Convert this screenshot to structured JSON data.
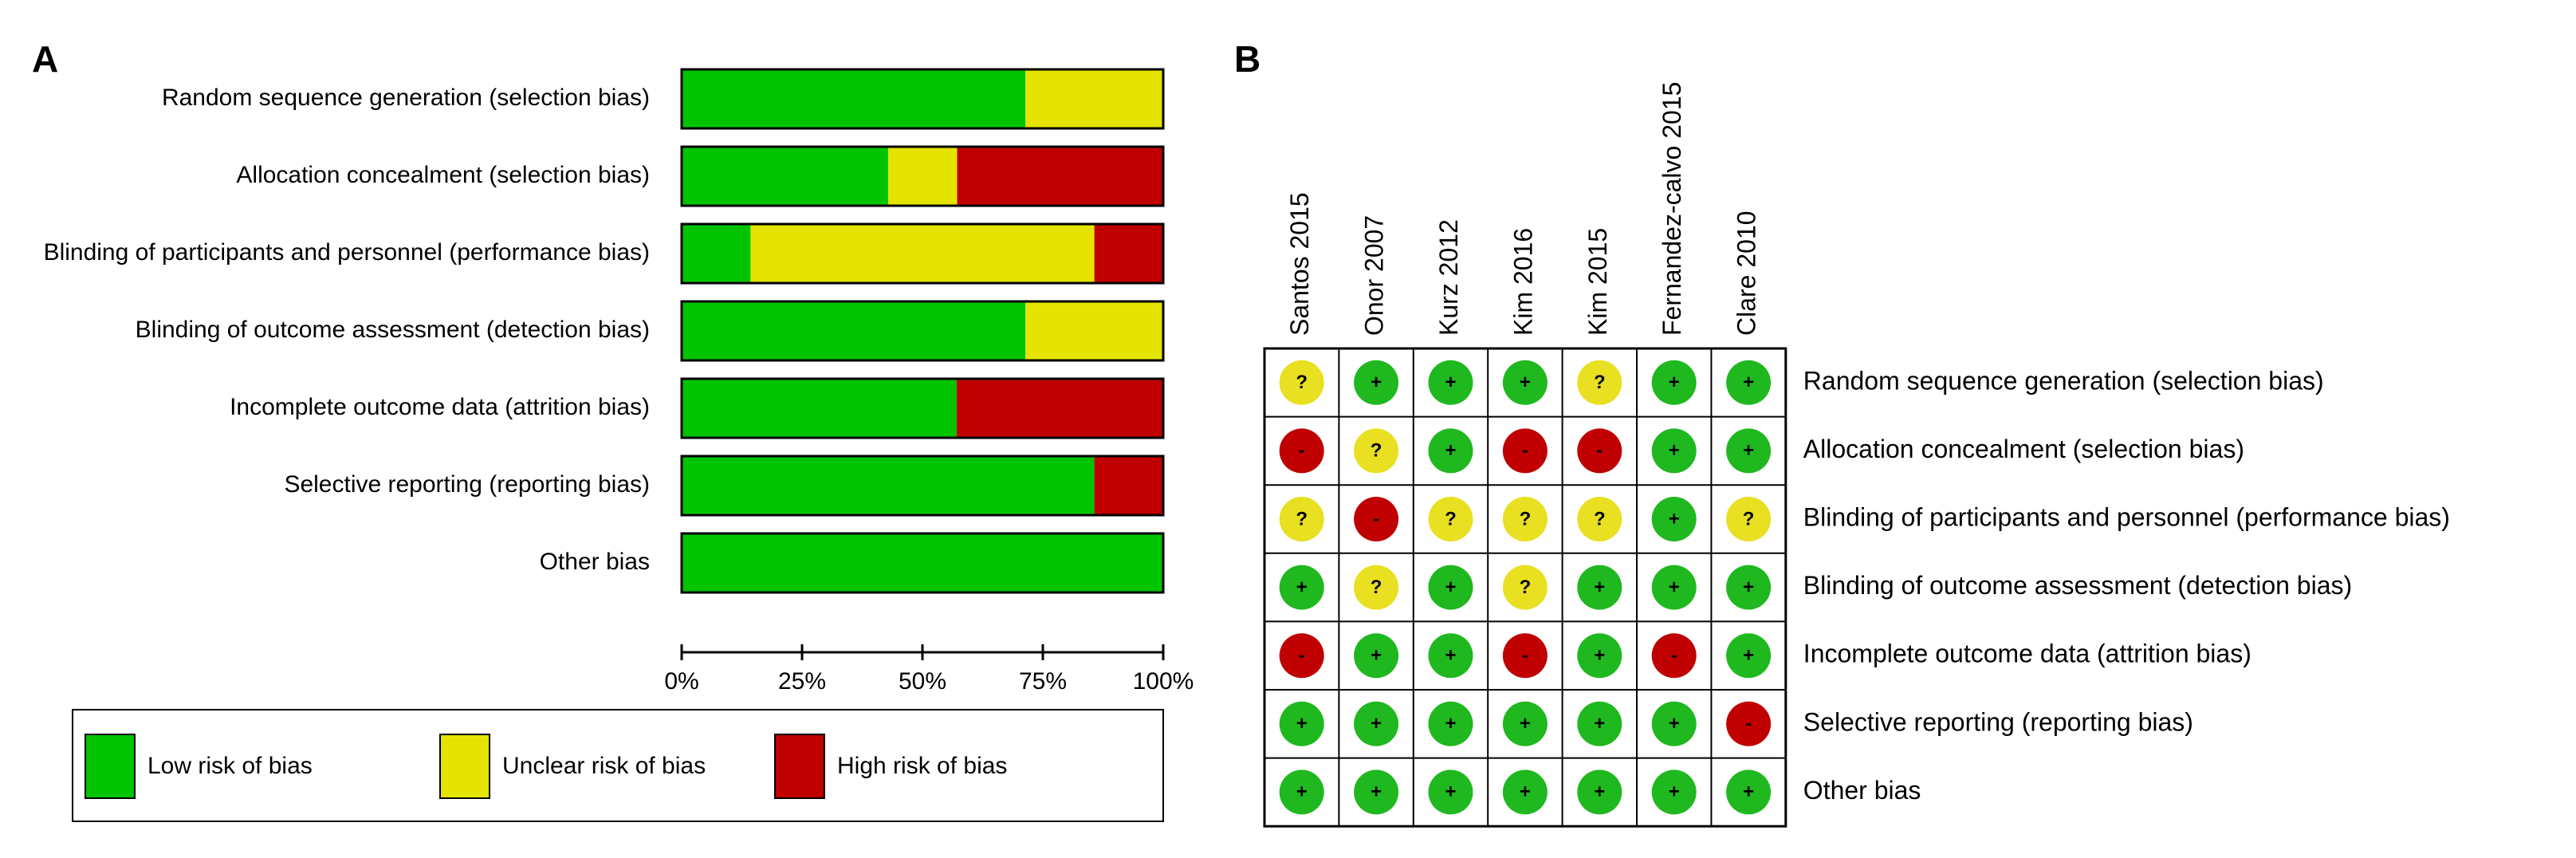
{
  "chart_data": [
    {
      "type": "bar",
      "orientation": "horizontal",
      "stacked": true,
      "panel_label": "A",
      "categories": [
        "Random sequence generation (selection bias)",
        "Allocation concealment (selection bias)",
        "Blinding of participants and personnel (performance bias)",
        "Blinding of outcome assessment (detection bias)",
        "Incomplete outcome data (attrition bias)",
        "Selective reporting (reporting bias)",
        "Other bias"
      ],
      "series": [
        {
          "name": "Low risk of bias",
          "color": "#00c400",
          "values": [
            71.4,
            42.9,
            14.3,
            71.4,
            57.1,
            85.7,
            100
          ]
        },
        {
          "name": "Unclear risk of bias",
          "color": "#e4e400",
          "values": [
            28.6,
            14.3,
            71.4,
            28.6,
            0,
            0,
            0
          ]
        },
        {
          "name": "High risk of bias",
          "color": "#c00000",
          "values": [
            0,
            42.9,
            14.3,
            0,
            42.9,
            14.3,
            0
          ]
        }
      ],
      "xlim": [
        0,
        100
      ],
      "xticks": [
        {
          "value": 0,
          "label": "0%"
        },
        {
          "value": 25,
          "label": "25%"
        },
        {
          "value": 50,
          "label": "50%"
        },
        {
          "value": 75,
          "label": "75%"
        },
        {
          "value": 100,
          "label": "100%"
        }
      ]
    }
  ],
  "summary_grid": {
    "panel_label": "B",
    "studies": [
      "Santos 2015",
      "Onor 2007",
      "Kurz 2012",
      "Kim 2016",
      "Kim 2015",
      "Fernandez-calvo 2015",
      "Clare 2010"
    ],
    "domains": [
      "Random sequence generation (selection bias)",
      "Allocation concealment (selection bias)",
      "Blinding of participants and personnel (performance bias)",
      "Blinding of outcome assessment (detection bias)",
      "Incomplete outcome data (attrition bias)",
      "Selective reporting (reporting bias)",
      "Other bias"
    ],
    "judgments": [
      [
        "?",
        "+",
        "+",
        "+",
        "?",
        "+",
        "+"
      ],
      [
        "-",
        "?",
        "+",
        "-",
        "-",
        "+",
        "+"
      ],
      [
        "?",
        "-",
        "?",
        "?",
        "?",
        "+",
        "?"
      ],
      [
        "+",
        "?",
        "+",
        "?",
        "+",
        "+",
        "+"
      ],
      [
        "-",
        "+",
        "+",
        "-",
        "+",
        "-",
        "+"
      ],
      [
        "+",
        "+",
        "+",
        "+",
        "+",
        "+",
        "-"
      ],
      [
        "+",
        "+",
        "+",
        "+",
        "+",
        "+",
        "+"
      ]
    ],
    "judgment_colors": {
      "+": "#1fb81f",
      "?": "#e8e020",
      "-": "#c00000"
    }
  }
}
